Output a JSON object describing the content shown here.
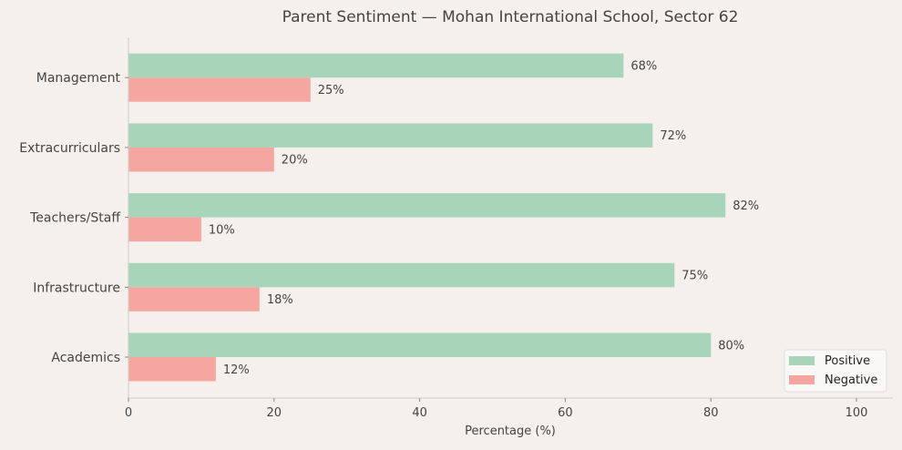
{
  "chart_data": {
    "type": "bar",
    "orientation": "horizontal",
    "title": "Parent Sentiment — Mohan International School, Sector 62",
    "xlabel": "Percentage (%)",
    "ylabel": "",
    "categories": [
      "Academics",
      "Infrastructure",
      "Teachers/Staff",
      "Extracurriculars",
      "Management"
    ],
    "series": [
      {
        "name": "Positive",
        "values": [
          80,
          75,
          82,
          72,
          68
        ],
        "color": "#a8d5ba"
      },
      {
        "name": "Negative",
        "values": [
          12,
          18,
          10,
          20,
          25
        ],
        "color": "#f6a6a1"
      }
    ],
    "data_label_suffix": "%",
    "xlim": [
      0,
      105
    ],
    "xticks": [
      0,
      20,
      40,
      60,
      80,
      100
    ],
    "grid": false,
    "legend_placement": "lower-right",
    "background": "#f5f0eb"
  }
}
